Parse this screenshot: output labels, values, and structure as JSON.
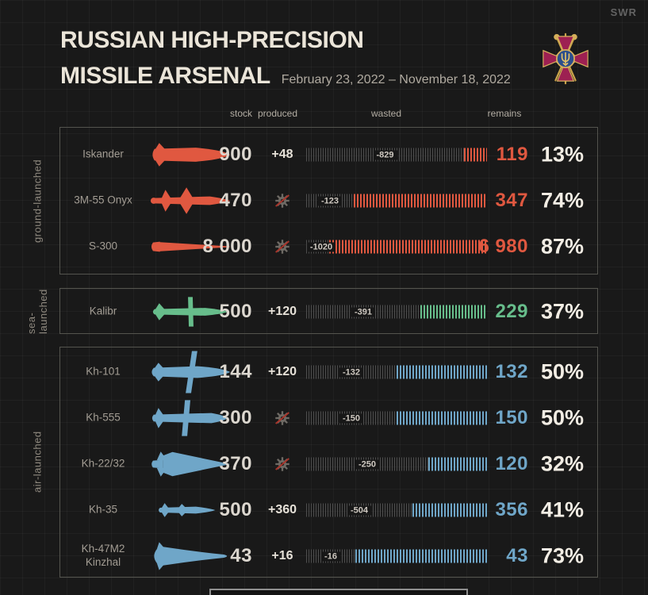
{
  "header": {
    "title_line1": "RUSSIAN HIGH-PRECISION",
    "title_line2": "MISSILE ARSENAL",
    "date_range": "February 23, 2022 – November 18, 2022",
    "watermark": "SWR"
  },
  "columns": {
    "stock": "stock",
    "produced": "produced",
    "wasted": "wasted",
    "remains": "remains"
  },
  "colors": {
    "background": "#191919",
    "ground_launched": "#e05840",
    "sea_launched": "#67bd8b",
    "air_launched": "#6fa6c8",
    "wasted_ticks": "#4e4e4e",
    "percent_text": "#f2ede4",
    "stock_text": "#dcd7cf"
  },
  "groups": [
    {
      "id": "ground-launched",
      "label": "ground-launched",
      "color": "#e05840",
      "rows": [
        {
          "name": "Iskander",
          "icon": "iskander-missile-icon",
          "stock": "900",
          "produced": "+48",
          "no_production": false,
          "wasted": "-829",
          "remains": "119",
          "percent": "13%",
          "stock_n": 900,
          "produced_n": 48,
          "wasted_n": 829,
          "remains_n": 119
        },
        {
          "name": "3M-55 Onyx",
          "icon": "onyx-missile-icon",
          "stock": "470",
          "produced": null,
          "no_production": true,
          "wasted": "-123",
          "remains": "347",
          "percent": "74%",
          "stock_n": 470,
          "produced_n": 0,
          "wasted_n": 123,
          "remains_n": 347
        },
        {
          "name": "S-300",
          "icon": "s300-missile-icon",
          "stock": "8 000",
          "produced": null,
          "no_production": true,
          "wasted": "-1020",
          "remains": "6 980",
          "percent": "87%",
          "stock_n": 8000,
          "produced_n": 0,
          "wasted_n": 1020,
          "remains_n": 6980
        }
      ]
    },
    {
      "id": "sea-launched",
      "label": "sea-launched",
      "color": "#67bd8b",
      "rows": [
        {
          "name": "Kalibr",
          "icon": "kalibr-missile-icon",
          "stock": "500",
          "produced": "+120",
          "no_production": false,
          "wasted": "-391",
          "remains": "229",
          "percent": "37%",
          "stock_n": 500,
          "produced_n": 120,
          "wasted_n": 391,
          "remains_n": 229
        }
      ]
    },
    {
      "id": "air-launched",
      "label": "air-launched",
      "color": "#6fa6c8",
      "rows": [
        {
          "name": "Kh-101",
          "icon": "kh101-missile-icon",
          "stock": "144",
          "produced": "+120",
          "no_production": false,
          "wasted": "-132",
          "remains": "132",
          "percent": "50%",
          "stock_n": 144,
          "produced_n": 120,
          "wasted_n": 132,
          "remains_n": 132
        },
        {
          "name": "Kh-555",
          "icon": "kh555-missile-icon",
          "stock": "300",
          "produced": null,
          "no_production": true,
          "wasted": "-150",
          "remains": "150",
          "percent": "50%",
          "stock_n": 300,
          "produced_n": 0,
          "wasted_n": 150,
          "remains_n": 150
        },
        {
          "name": "Kh-22/32",
          "icon": "kh22-missile-icon",
          "stock": "370",
          "produced": null,
          "no_production": true,
          "wasted": "-250",
          "remains": "120",
          "percent": "32%",
          "stock_n": 370,
          "produced_n": 0,
          "wasted_n": 250,
          "remains_n": 120
        },
        {
          "name": "Kh-35",
          "icon": "kh35-missile-icon",
          "stock": "500",
          "produced": "+360",
          "no_production": false,
          "wasted": "-504",
          "remains": "356",
          "percent": "41%",
          "stock_n": 500,
          "produced_n": 360,
          "wasted_n": 504,
          "remains_n": 356
        },
        {
          "name": "Kh-47M2\nKinzhal",
          "icon": "kinzhal-missile-icon",
          "stock": "43",
          "produced": "+16",
          "no_production": false,
          "wasted": "-16",
          "remains": "43",
          "percent": "73%",
          "stock_n": 43,
          "produced_n": 16,
          "wasted_n": 16,
          "remains_n": 43
        }
      ]
    }
  ],
  "chart_data": {
    "type": "bar",
    "orientation": "horizontal",
    "title": "Russian High-Precision Missile Arsenal",
    "subtitle": "February 23, 2022 – November 18, 2022",
    "categories": [
      "Iskander",
      "3M-55 Onyx",
      "S-300",
      "Kalibr",
      "Kh-101",
      "Kh-555",
      "Kh-22/32",
      "Kh-35",
      "Kh-47M2 Kinzhal"
    ],
    "category_groups": [
      "ground-launched",
      "ground-launched",
      "ground-launched",
      "sea-launched",
      "air-launched",
      "air-launched",
      "air-launched",
      "air-launched",
      "air-launched"
    ],
    "series": [
      {
        "name": "stock",
        "values": [
          900,
          470,
          8000,
          500,
          144,
          300,
          370,
          500,
          43
        ]
      },
      {
        "name": "produced",
        "values": [
          48,
          0,
          0,
          120,
          120,
          0,
          0,
          360,
          16
        ]
      },
      {
        "name": "wasted",
        "values": [
          829,
          123,
          1020,
          391,
          132,
          150,
          250,
          504,
          16
        ]
      },
      {
        "name": "remains",
        "values": [
          119,
          347,
          6980,
          229,
          132,
          150,
          120,
          356,
          43
        ]
      }
    ],
    "percent_remaining": [
      13,
      74,
      87,
      37,
      50,
      50,
      32,
      41,
      73
    ],
    "bar_encoding": "each bar = stock+produced; gray ticks = wasted fraction, colored ticks = remains fraction",
    "legend_position": "none",
    "grid": true
  }
}
